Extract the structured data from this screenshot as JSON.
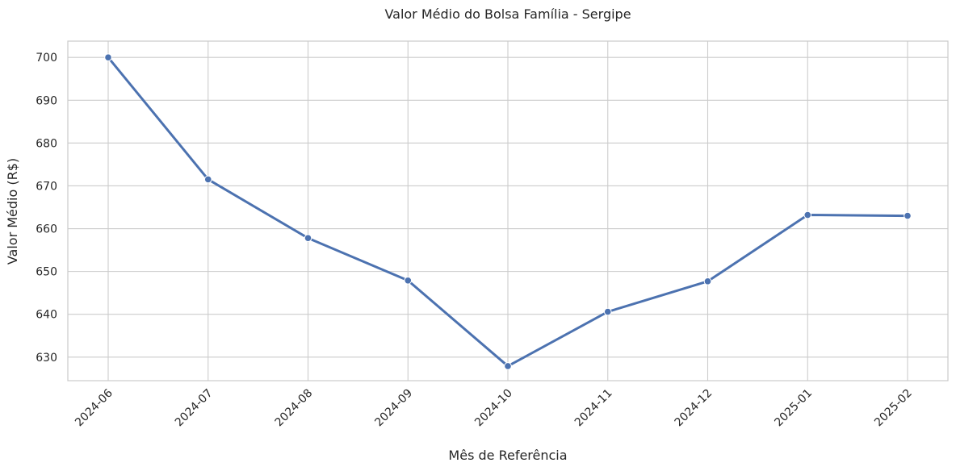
{
  "chart_data": {
    "type": "line",
    "title": "Valor Médio do Bolsa Família - Sergipe",
    "xlabel": "Mês de Referência",
    "ylabel": "Valor Médio (R$)",
    "categories": [
      "2024-06",
      "2024-07",
      "2024-08",
      "2024-09",
      "2024-10",
      "2024-11",
      "2024-12",
      "2025-01",
      "2025-02"
    ],
    "series": [
      {
        "values": [
          700.0,
          671.5,
          657.8,
          647.9,
          627.9,
          640.6,
          647.7,
          663.2,
          663.0
        ]
      }
    ],
    "ylim": [
      624.5,
      703.8
    ],
    "yticks": [
      630,
      640,
      650,
      660,
      670,
      680,
      690,
      700
    ],
    "grid": true,
    "line_color": "#4c72b0"
  }
}
